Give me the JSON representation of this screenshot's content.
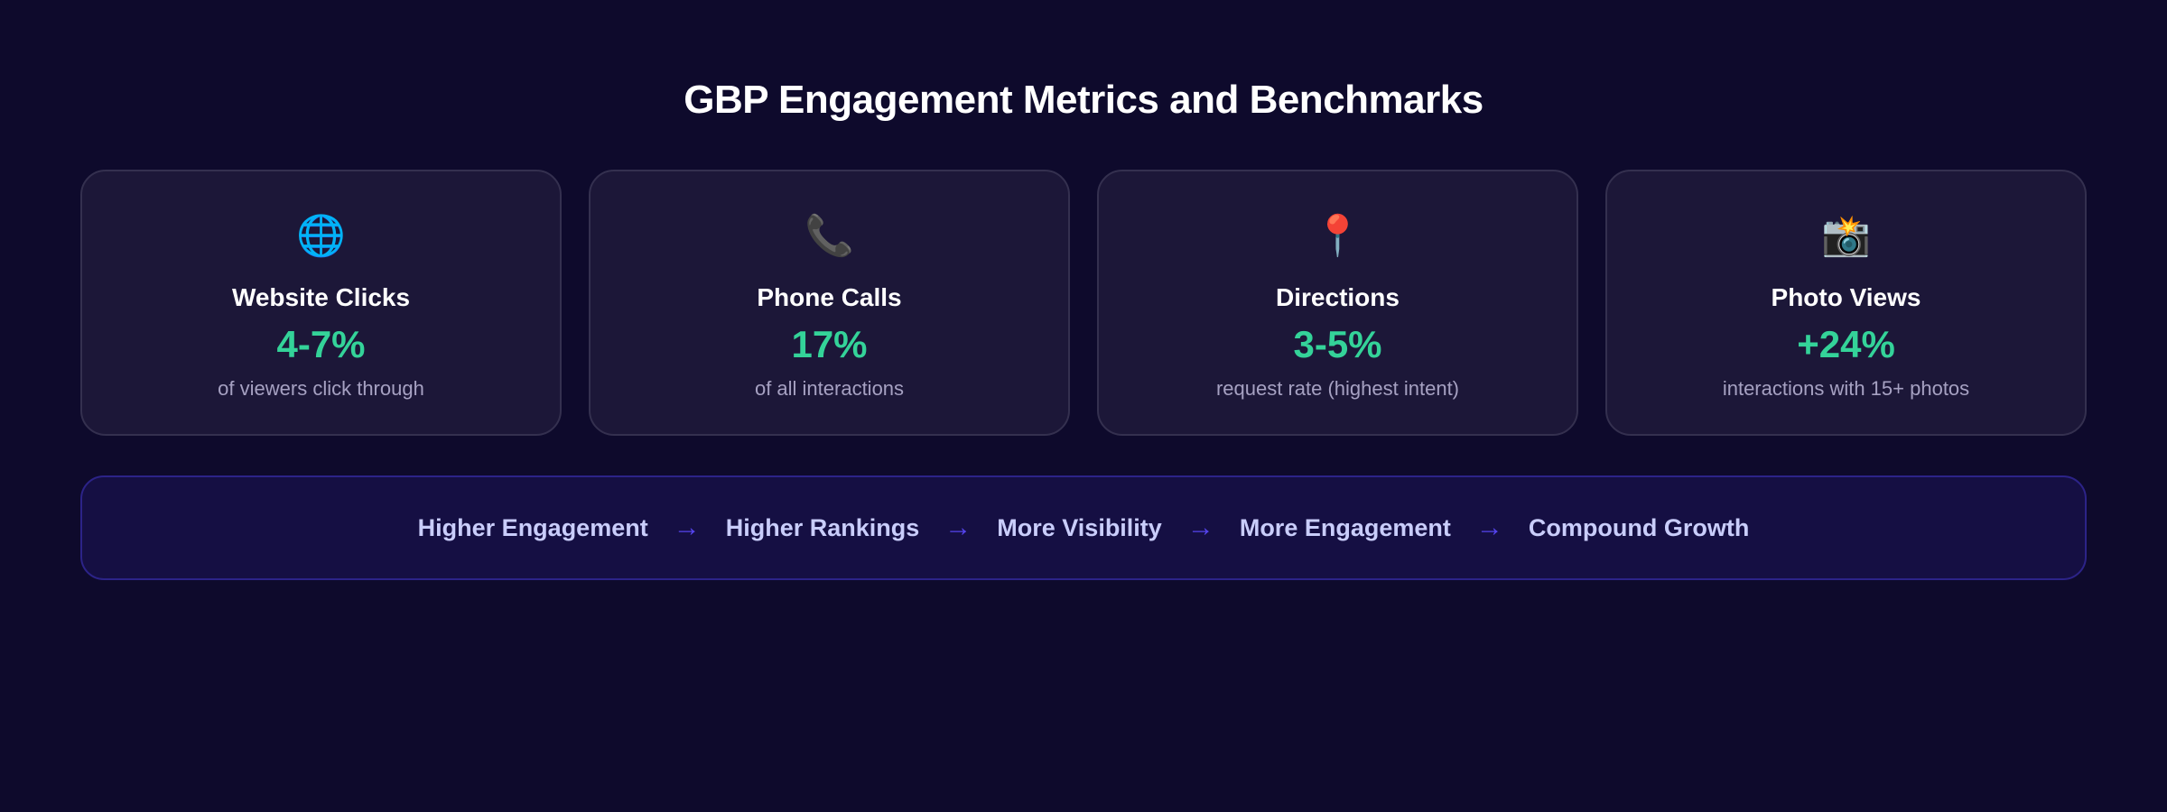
{
  "title": "GBP Engagement Metrics and Benchmarks",
  "cards": [
    {
      "icon": "🌐",
      "icon_name": "globe-icon",
      "title": "Website Clicks",
      "value": "4-7%",
      "subtitle": "of viewers click through"
    },
    {
      "icon": "📞",
      "icon_name": "phone-icon",
      "title": "Phone Calls",
      "value": "17%",
      "subtitle": "of all interactions"
    },
    {
      "icon": "📍",
      "icon_name": "pin-icon",
      "title": "Directions",
      "value": "3-5%",
      "subtitle": "request rate (highest intent)"
    },
    {
      "icon": "📸",
      "icon_name": "camera-flash-icon",
      "title": "Photo Views",
      "value": "+24%",
      "subtitle": "interactions with 15+ photos"
    }
  ],
  "flow": {
    "steps": [
      "Higher Engagement",
      "Higher Rankings",
      "More Visibility",
      "More Engagement",
      "Compound Growth"
    ],
    "arrow": "→"
  },
  "colors": {
    "accent_value": "#34d399",
    "arrow": "#5544ee",
    "background": "#0e0a2c"
  }
}
